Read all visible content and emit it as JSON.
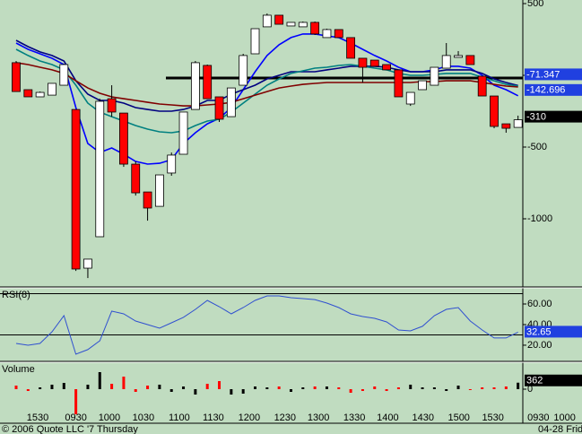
{
  "chart_data": [
    {
      "type": "candlestick",
      "open": [
        88,
        -100,
        -150,
        -138,
        -69,
        -238,
        -1344,
        -1125,
        -163,
        -263,
        -619,
        -813,
        -913,
        -681,
        -550,
        -238,
        69,
        -150,
        -288,
        -69,
        150,
        338,
        419,
        344,
        338,
        369,
        263,
        319,
        263,
        119,
        106,
        75,
        38,
        -200,
        -100,
        -69,
        50,
        125,
        138,
        -6,
        -144,
        -338,
        -363
      ],
      "high": [
        100,
        -100,
        -113,
        -56,
        81,
        -238,
        -1281,
        -163,
        -69,
        -263,
        -600,
        -813,
        -694,
        -538,
        -256,
        100,
        75,
        -150,
        -88,
        150,
        325,
        431,
        419,
        369,
        375,
        375,
        325,
        319,
        263,
        119,
        106,
        75,
        38,
        -119,
        -38,
        56,
        225,
        169,
        138,
        -6,
        -144,
        -338,
        -281
      ],
      "low": [
        -113,
        -150,
        -150,
        -138,
        -69,
        -1363,
        -1413,
        -1125,
        -288,
        -638,
        -838,
        -1013,
        -913,
        -700,
        -550,
        -238,
        -163,
        -325,
        -288,
        -69,
        150,
        338,
        356,
        344,
        338,
        281,
        263,
        263,
        119,
        -50,
        63,
        38,
        -150,
        -213,
        -100,
        -69,
        50,
        125,
        75,
        -144,
        -369,
        -400,
        -363
      ],
      "close": [
        -113,
        -150,
        -119,
        -56,
        75,
        -1350,
        -1281,
        -181,
        -256,
        -619,
        -819,
        -925,
        -694,
        -556,
        -256,
        88,
        -163,
        -306,
        -88,
        138,
        325,
        419,
        356,
        369,
        369,
        288,
        319,
        263,
        119,
        56,
        63,
        38,
        -150,
        -119,
        -38,
        56,
        138,
        138,
        75,
        -144,
        -356,
        -369,
        -310
      ],
      "up_color": "#ffffff",
      "down_color": "#ff0000",
      "series": [
        {
          "color": "#0000ff",
          "values": [
            225,
            181,
            150,
            119,
            75,
            -225,
            -475,
            -538,
            -506,
            -550,
            -600,
            -619,
            -613,
            -588,
            -475,
            -400,
            -338,
            -300,
            -225,
            -100,
            25,
            138,
            213,
            263,
            288,
            288,
            275,
            263,
            225,
            181,
            138,
            100,
            56,
            25,
            25,
            38,
            63,
            63,
            50,
            0,
            -69,
            -100,
            -142.696
          ]
        },
        {
          "color": "#000080",
          "values": [
            244,
            200,
            163,
            138,
            100,
            -38,
            -131,
            -175,
            -175,
            -194,
            -225,
            -238,
            -250,
            -250,
            -238,
            -213,
            -175,
            -175,
            -131,
            -100,
            -69,
            -25,
            0,
            25,
            25,
            25,
            38,
            50,
            63,
            63,
            63,
            56,
            38,
            25,
            25,
            25,
            38,
            38,
            38,
            13,
            -25,
            -50,
            -71.347
          ]
        },
        {
          "color": "#008080",
          "values": [
            181,
            138,
            100,
            75,
            38,
            -69,
            -194,
            -256,
            -288,
            -319,
            -350,
            -375,
            -394,
            -400,
            -388,
            -350,
            -319,
            -306,
            -256,
            -194,
            -131,
            -69,
            -25,
            13,
            31,
            50,
            56,
            69,
            75,
            63,
            50,
            38,
            13,
            0,
            0,
            6,
            13,
            13,
            13,
            -13,
            -38,
            -63,
            -75
          ]
        },
        {
          "color": "#800000",
          "values": [
            88,
            75,
            56,
            38,
            13,
            -38,
            -88,
            -125,
            -150,
            -163,
            -175,
            -188,
            -200,
            -206,
            -213,
            -213,
            -206,
            -200,
            -188,
            -163,
            -138,
            -113,
            -88,
            -75,
            -63,
            -56,
            -50,
            -50,
            -50,
            -50,
            -50,
            -50,
            -50,
            -50,
            -44,
            -44,
            -38,
            -38,
            -38,
            -50,
            -63,
            -75,
            -81
          ]
        }
      ],
      "hline": -19,
      "ylim": [
        -1475,
        525
      ],
      "yticks": [
        500,
        0,
        -500,
        -1000
      ],
      "xlim": [
        -1.35,
        42.4
      ],
      "xticks": [
        {
          "value": 1.8,
          "label": "1530"
        },
        {
          "value": 5,
          "label": "0930"
        },
        {
          "value": 7.8,
          "label": "1000"
        },
        {
          "value": 10.65,
          "label": "1030"
        },
        {
          "value": 13.65,
          "label": "1100"
        },
        {
          "value": 16.5,
          "label": "1130"
        },
        {
          "value": 19.5,
          "label": "1200"
        },
        {
          "value": 22.5,
          "label": "1230"
        },
        {
          "value": 25.3,
          "label": "1300"
        },
        {
          "value": 28.3,
          "label": "1330"
        },
        {
          "value": 31.1,
          "label": "1400"
        },
        {
          "value": 34.05,
          "label": "1430"
        },
        {
          "value": 37.05,
          "label": "1500"
        },
        {
          "value": 39.9,
          "label": "1530"
        },
        {
          "value": 43.7,
          "label": "0930"
        },
        {
          "value": 45.9,
          "label": "1000"
        }
      ]
    },
    {
      "type": "line",
      "title": "RSI(8)",
      "color": "#3050d0",
      "values": [
        21.7,
        20.0,
        21.7,
        33.0,
        48.7,
        11.3,
        15.7,
        24.3,
        53.0,
        50.4,
        43.5,
        40.0,
        36.5,
        41.7,
        47.0,
        54.8,
        63.5,
        57.4,
        50.4,
        56.5,
        63.5,
        67.8,
        67.8,
        66.1,
        65.2,
        64.3,
        60.9,
        56.5,
        50.4,
        47.8,
        46.1,
        42.6,
        34.8,
        33.9,
        38.3,
        48.7,
        54.8,
        56.5,
        43.5,
        34.8,
        27.0,
        27.0,
        32.65
      ],
      "hlines": [
        70,
        30
      ],
      "ylim": [
        4.3,
        74.8
      ],
      "yticks": [
        {
          "value": 60,
          "label": "60.00"
        },
        {
          "value": 40,
          "label": "40.00"
        },
        {
          "value": 20,
          "label": "20.00"
        }
      ]
    },
    {
      "type": "bar",
      "title": "Volume",
      "up_color": "#000000",
      "down_color": "#ff0000",
      "values": [
        200,
        -100,
        100,
        250,
        350,
        -1400,
        250,
        950,
        300,
        700,
        -150,
        200,
        250,
        -150,
        150,
        -300,
        300,
        450,
        -300,
        -250,
        150,
        100,
        150,
        -150,
        100,
        150,
        150,
        100,
        -200,
        -100,
        150,
        -100,
        100,
        250,
        100,
        100,
        -100,
        200,
        -50,
        100,
        100,
        150,
        362
      ],
      "ylim": [
        -1800,
        1450
      ],
      "yticks": [
        0
      ]
    }
  ],
  "footer": {
    "copyright": "© 2006 Quote LLC '7 Thursday",
    "date": "04-28 Frid"
  }
}
